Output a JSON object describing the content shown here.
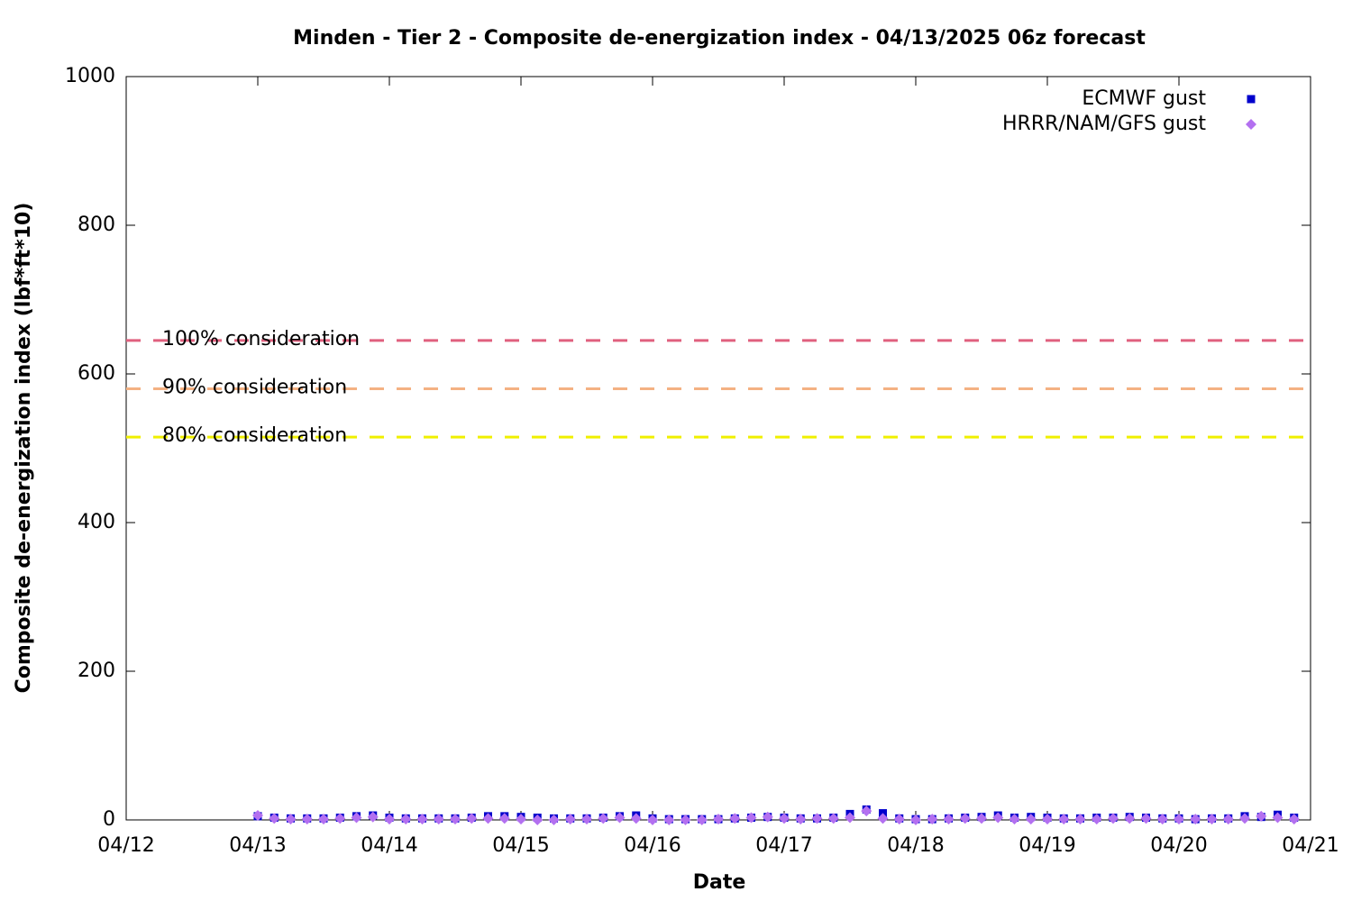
{
  "chart_data": {
    "type": "scatter",
    "title": "Minden - Tier 2 - Composite de-energization index - 04/13/2025 06z forecast",
    "xlabel": "Date",
    "ylabel": "Composite de-energization index (lbf*ft*10)",
    "xlim": [
      12,
      21
    ],
    "xticks": [
      {
        "value": 12,
        "label": "04/12"
      },
      {
        "value": 13,
        "label": "04/13"
      },
      {
        "value": 14,
        "label": "04/14"
      },
      {
        "value": 15,
        "label": "04/15"
      },
      {
        "value": 16,
        "label": "04/16"
      },
      {
        "value": 17,
        "label": "04/17"
      },
      {
        "value": 18,
        "label": "04/18"
      },
      {
        "value": 19,
        "label": "04/19"
      },
      {
        "value": 20,
        "label": "04/20"
      },
      {
        "value": 21,
        "label": "04/21"
      }
    ],
    "ylim": [
      0,
      1000
    ],
    "yticks": [
      0,
      200,
      400,
      600,
      800,
      1000
    ],
    "legend": "top-right",
    "x": [
      13,
      13.125,
      13.25,
      13.375,
      13.5,
      13.625,
      13.75,
      13.875,
      14,
      14.125,
      14.25,
      14.375,
      14.5,
      14.625,
      14.75,
      14.875,
      15,
      15.125,
      15.25,
      15.375,
      15.5,
      15.625,
      15.75,
      15.875,
      16,
      16.125,
      16.25,
      16.375,
      16.5,
      16.625,
      16.75,
      16.875,
      17,
      17.125,
      17.25,
      17.375,
      17.5,
      17.625,
      17.75,
      17.875,
      18,
      18.125,
      18.25,
      18.375,
      18.5,
      18.625,
      18.75,
      18.875,
      19,
      19.125,
      19.25,
      19.375,
      19.5,
      19.625,
      19.75,
      19.875,
      20,
      20.125,
      20.25,
      20.375,
      20.5,
      20.625,
      20.75,
      20.875
    ],
    "series": [
      {
        "name": "ECMWF gust",
        "color": "#0000cc",
        "marker": "square",
        "values": [
          5,
          3,
          2,
          2,
          2,
          3,
          5,
          6,
          3,
          2,
          2,
          2,
          2,
          3,
          5,
          5,
          4,
          3,
          2,
          2,
          2,
          3,
          5,
          6,
          2,
          1,
          1,
          1,
          1,
          2,
          3,
          4,
          3,
          2,
          2,
          3,
          8,
          14,
          9,
          2,
          1,
          1,
          2,
          3,
          4,
          6,
          3,
          4,
          3,
          2,
          2,
          3,
          3,
          4,
          3,
          2,
          2,
          1,
          2,
          2,
          5,
          4,
          7,
          3
        ]
      },
      {
        "name": "HRRR/NAM/GFS gust",
        "color": "#b370f0",
        "marker": "diamond",
        "values": [
          6,
          2,
          1,
          1,
          1,
          2,
          3,
          4,
          1,
          1,
          1,
          1,
          1,
          2,
          2,
          2,
          1,
          0,
          0,
          1,
          1,
          2,
          3,
          2,
          0,
          0,
          0,
          0,
          1,
          2,
          3,
          4,
          2,
          1,
          2,
          2,
          3,
          12,
          2,
          1,
          0,
          1,
          1,
          2,
          2,
          3,
          1,
          1,
          1,
          1,
          1,
          1,
          2,
          2,
          2,
          1,
          1,
          1,
          1,
          1,
          2,
          5,
          3,
          1
        ]
      }
    ],
    "thresholds": [
      {
        "label": "100% consideration",
        "value": 645,
        "color": "#e0607e"
      },
      {
        "label": "90% consideration",
        "value": 580,
        "color": "#f4b183"
      },
      {
        "label": "80% consideration",
        "value": 515,
        "color": "#f0f000"
      }
    ]
  }
}
